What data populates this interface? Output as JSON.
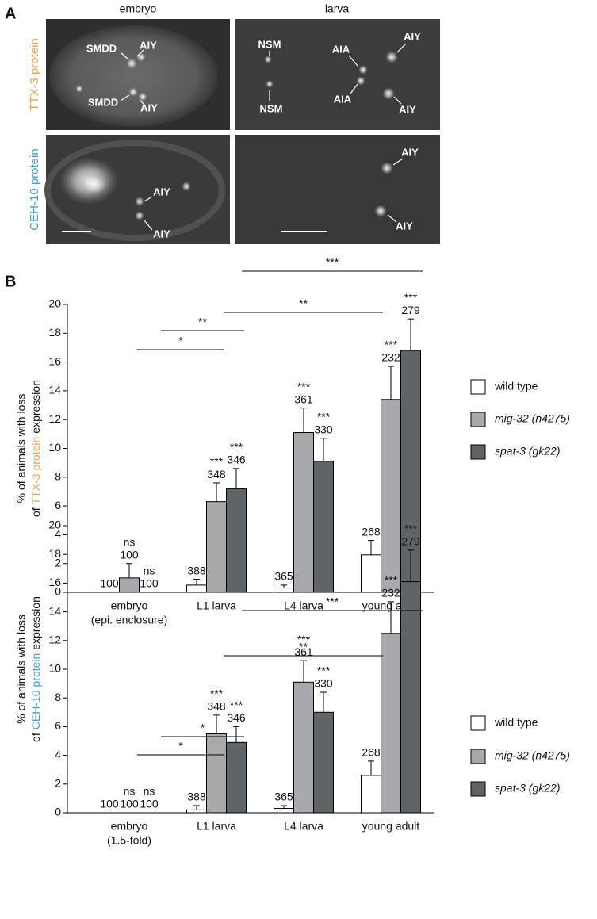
{
  "panel_a": {
    "panel_label": "A",
    "columns": [
      "embryo",
      "larva"
    ],
    "rows": [
      {
        "label": "TTX-3 protein",
        "color": "#f0a050"
      },
      {
        "label": "CEH-10 protein",
        "color": "#3a9fd8"
      }
    ],
    "cells": [
      {
        "labels": [
          "SMDD",
          "AIY",
          "SMDD",
          "AIY"
        ]
      },
      {
        "labels": [
          "NSM",
          "NSM",
          "AIA",
          "AIA",
          "AIY",
          "AIY"
        ]
      },
      {
        "labels": [
          "AIY",
          "AIY"
        ]
      },
      {
        "labels": [
          "AIY",
          "AIY"
        ]
      }
    ]
  },
  "panel_b_label": "B",
  "chart_data": [
    {
      "type": "bar",
      "ylabel": {
        "line1": "% of animals with loss",
        "prefix": "of",
        "highlight": "TTX-3 protein",
        "suffix": "expression",
        "highlight_color": "#f0a050"
      },
      "categories": [
        [
          "embryo",
          "(epi. enclosure)"
        ],
        [
          "L1 larva"
        ],
        [
          "L4 larva"
        ],
        [
          "young adult"
        ]
      ],
      "ylim": [
        0,
        20
      ],
      "yticks": [
        0,
        2,
        4,
        6,
        8,
        10,
        12,
        14,
        16,
        18,
        20
      ],
      "series": [
        {
          "name": "wild type",
          "italic": false,
          "color": "#ffffff",
          "values": [
            0,
            0.5,
            0.3,
            2.6
          ],
          "errors": [
            0,
            0.4,
            0.2,
            1.0
          ],
          "n": [
            "100",
            "388",
            "365",
            "268"
          ],
          "significance": [
            null,
            null,
            null,
            null
          ]
        },
        {
          "name": "mig-32 (n4275)",
          "italic": true,
          "color": "#a7a9ab",
          "values": [
            1.0,
            6.3,
            11.1,
            13.4
          ],
          "errors": [
            1.0,
            1.3,
            1.7,
            2.3
          ],
          "n": [
            "100",
            "348",
            "361",
            "232"
          ],
          "significance": [
            "ns",
            "***",
            "***",
            "***"
          ]
        },
        {
          "name": "spat-3 (gk22)",
          "italic": true,
          "color": "#5f6566",
          "values": [
            0,
            7.2,
            9.1,
            16.8
          ],
          "errors": [
            0,
            1.4,
            1.6,
            2.2
          ],
          "n": [
            "100",
            "346",
            "330",
            "279"
          ],
          "significance": [
            "ns",
            "***",
            "***",
            "***"
          ]
        }
      ],
      "comparisons": [
        "*",
        "**",
        "**",
        "***"
      ]
    },
    {
      "type": "bar",
      "ylabel": {
        "line1": "% of animals with loss",
        "prefix": "of",
        "highlight": "CEH-10 protein",
        "suffix": "expression",
        "highlight_color": "#3a9fd8"
      },
      "categories": [
        [
          "embryo",
          "(1.5-fold)"
        ],
        [
          "L1 larva"
        ],
        [
          "L4 larva"
        ],
        [
          "young adult"
        ]
      ],
      "ylim": [
        0,
        20
      ],
      "yticks": [
        0,
        2,
        4,
        6,
        8,
        10,
        12,
        14,
        16,
        18,
        20
      ],
      "series": [
        {
          "name": "wild type",
          "italic": false,
          "color": "#ffffff",
          "values": [
            0,
            0.2,
            0.3,
            2.6
          ],
          "errors": [
            0,
            0.3,
            0.2,
            1.0
          ],
          "n": [
            "100",
            "388",
            "365",
            "268"
          ],
          "significance": [
            null,
            null,
            null,
            null
          ]
        },
        {
          "name": "mig-32 (n4275)",
          "italic": true,
          "color": "#a7a9ab",
          "values": [
            0,
            5.5,
            9.1,
            12.5
          ],
          "errors": [
            0,
            1.3,
            1.5,
            2.2
          ],
          "n": [
            "100",
            "348",
            "361",
            "232"
          ],
          "significance": [
            "ns",
            "***",
            "***",
            "***"
          ]
        },
        {
          "name": "spat-3 (gk22)",
          "italic": true,
          "color": "#5f6566",
          "values": [
            0,
            4.9,
            7.0,
            16.1
          ],
          "errors": [
            0,
            1.1,
            1.4,
            2.2
          ],
          "n": [
            "100",
            "346",
            "330",
            "279"
          ],
          "significance": [
            "ns",
            "***",
            "***",
            "***"
          ]
        }
      ],
      "comparisons": [
        "*",
        "*",
        "**",
        "***"
      ]
    }
  ]
}
